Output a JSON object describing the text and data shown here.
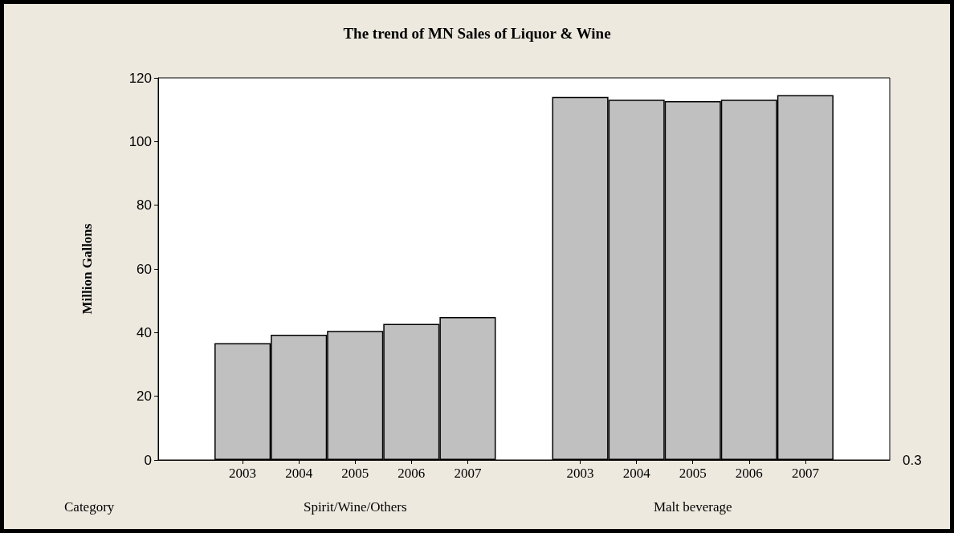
{
  "chart_data": {
    "type": "bar",
    "title": "The trend of MN Sales of Liquor & Wine",
    "xlabel": "Category",
    "ylabel": "Million Gallons",
    "categories": [
      null,
      "2003",
      "2004",
      "2005",
      "2006",
      "2007",
      null,
      "2003",
      "2004",
      "2005",
      "2006",
      "2007",
      null
    ],
    "values": [
      null,
      36.7,
      39.3,
      40.5,
      42.7,
      44.9,
      null,
      114.0,
      113.1,
      112.7,
      113.1,
      114.6,
      null
    ],
    "color": "#c0c0c0",
    "ylim": [
      0,
      120
    ],
    "yticks": [
      0,
      20,
      40,
      60,
      80,
      100,
      120
    ],
    "annotations": [
      "Spirit/Wine/Others",
      "Malt beverage",
      "0.3"
    ],
    "grid": false
  }
}
